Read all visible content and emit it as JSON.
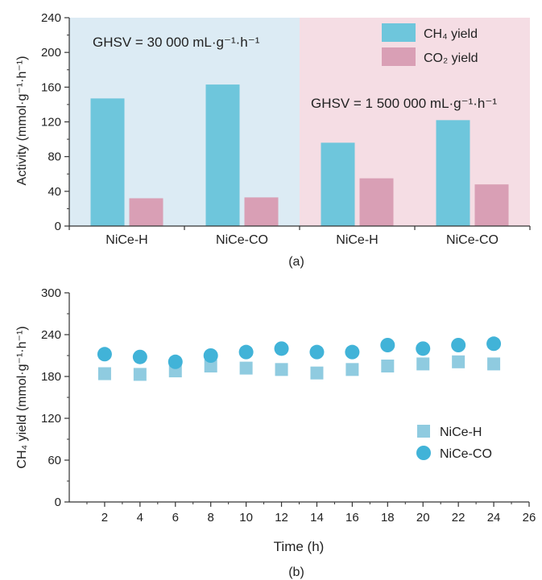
{
  "chart_data": [
    {
      "type": "bar",
      "panel_label": "(a)",
      "ylabel": "Activity (mmol·g⁻¹·h⁻¹)",
      "ylim": [
        0,
        240
      ],
      "yticks": [
        0,
        40,
        80,
        120,
        160,
        200,
        240
      ],
      "categories": [
        "NiCe-H",
        "NiCe-CO",
        "NiCe-H",
        "NiCe-CO"
      ],
      "series": [
        {
          "name": "CH₄ yield",
          "color": "#6ec6dc",
          "values": [
            147,
            163,
            96,
            122
          ]
        },
        {
          "name": "CO₂ yield",
          "color": "#d99fb5",
          "values": [
            32,
            33,
            55,
            48
          ]
        }
      ],
      "regions": [
        {
          "label": "GHSV = 30 000 mL·g⁻¹·h⁻¹",
          "color": "#dcebf4",
          "categories": [
            0,
            1
          ]
        },
        {
          "label": "GHSV = 1 500 000 mL·g⁻¹·h⁻¹",
          "color": "#f5dde4",
          "categories": [
            2,
            3
          ]
        }
      ],
      "legend_position": "top-right",
      "grid": false
    },
    {
      "type": "scatter",
      "panel_label": "(b)",
      "xlabel": "Time (h)",
      "ylabel": "CH₄ yield (mmol·g⁻¹·h⁻¹)",
      "xlim": [
        0,
        26
      ],
      "ylim": [
        0,
        300
      ],
      "xticks": [
        2,
        4,
        6,
        8,
        10,
        12,
        14,
        16,
        18,
        20,
        22,
        24,
        26
      ],
      "yticks": [
        0,
        60,
        120,
        180,
        240,
        300
      ],
      "x": [
        2,
        4,
        6,
        8,
        10,
        12,
        14,
        16,
        18,
        20,
        22,
        24
      ],
      "series": [
        {
          "name": "NiCe-H",
          "marker": "square",
          "color": "#8fcbe0",
          "values": [
            184,
            183,
            188,
            195,
            192,
            190,
            185,
            190,
            195,
            198,
            201,
            198
          ]
        },
        {
          "name": "NiCe-CO",
          "marker": "circle",
          "color": "#41b3d8",
          "values": [
            212,
            208,
            201,
            210,
            215,
            220,
            215,
            215,
            225,
            220,
            225,
            227
          ]
        }
      ],
      "legend_position": "right",
      "grid": false
    }
  ]
}
